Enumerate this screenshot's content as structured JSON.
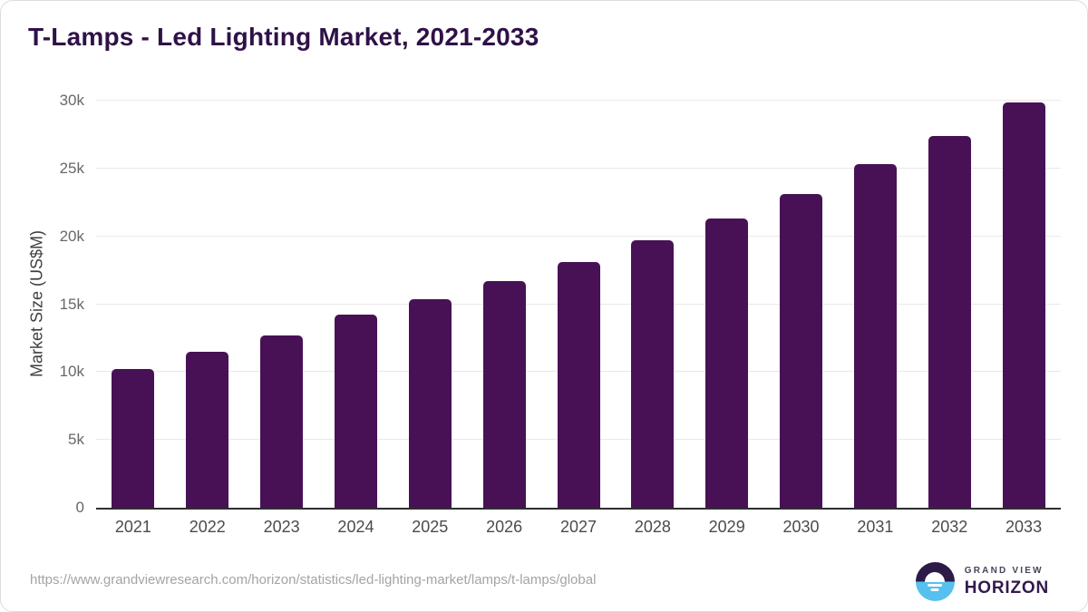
{
  "title": "T-Lamps - Led Lighting Market, 2021-2033",
  "chart_data": {
    "type": "bar",
    "title": "T-Lamps - Led Lighting Market, 2021-2033",
    "categories": [
      "2021",
      "2022",
      "2023",
      "2024",
      "2025",
      "2026",
      "2027",
      "2028",
      "2029",
      "2030",
      "2031",
      "2032",
      "2033"
    ],
    "values": [
      10200,
      11500,
      12700,
      14200,
      15400,
      16700,
      18100,
      19700,
      21300,
      23100,
      25300,
      27400,
      29900
    ],
    "xlabel": "",
    "ylabel": "Market Size (US$M)",
    "ylim": [
      0,
      30000
    ],
    "yticks": [
      0,
      5000,
      10000,
      15000,
      20000,
      25000,
      30000
    ],
    "ytick_labels": [
      "0",
      "5k",
      "10k",
      "15k",
      "20k",
      "25k",
      "30k"
    ],
    "grid": true,
    "legend": false,
    "bar_color": "#481156"
  },
  "footer": {
    "source_url": "https://www.grandviewresearch.com/horizon/statistics/led-lighting-market/lamps/t-lamps/global",
    "brand_line1": "GRAND VIEW",
    "brand_line2": "HORIZON"
  },
  "colors": {
    "bar": "#481156",
    "title_text": "#2f1148",
    "logo_navy": "#2e1a47",
    "logo_blue": "#56c1ef"
  }
}
